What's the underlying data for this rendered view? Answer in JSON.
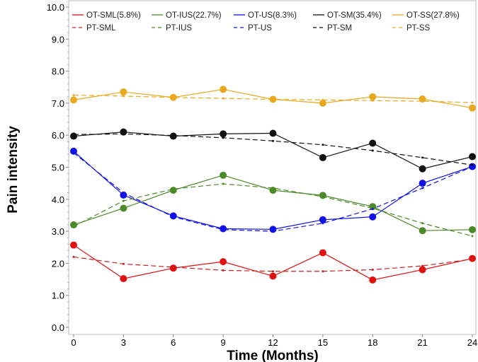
{
  "chart_data": {
    "type": "line",
    "xlabel": "Time (Months)",
    "ylabel": "Pain intensity",
    "x": [
      0,
      3,
      6,
      9,
      12,
      15,
      18,
      21,
      24
    ],
    "xlim": [
      0,
      24
    ],
    "ylim": [
      0,
      10
    ],
    "xticks": [
      "0",
      "3",
      "6",
      "9",
      "12",
      "15",
      "18",
      "21",
      "24"
    ],
    "yticks": [
      "0.0",
      "1.0",
      "2.0",
      "3.0",
      "4.0",
      "5.0",
      "6.0",
      "7.0",
      "8.0",
      "9.0",
      "10.0"
    ],
    "legend_position": "top",
    "series": [
      {
        "name": "OT-SML(5.8%)",
        "color": "#e01010",
        "style": "solid",
        "markers": true,
        "values": [
          2.57,
          1.52,
          1.85,
          2.05,
          1.6,
          2.33,
          1.48,
          1.8,
          2.15
        ]
      },
      {
        "name": "OT-IUS(22.7%)",
        "color": "#4a8a28",
        "style": "solid",
        "markers": true,
        "values": [
          3.2,
          3.72,
          4.28,
          4.75,
          4.28,
          4.12,
          3.77,
          3.02,
          3.05
        ]
      },
      {
        "name": "OT-US(8.3%)",
        "color": "#1010e8",
        "style": "solid",
        "markers": true,
        "values": [
          5.5,
          4.13,
          3.48,
          3.08,
          3.06,
          3.36,
          3.45,
          4.5,
          5.02
        ]
      },
      {
        "name": "OT-SM(35.4%)",
        "color": "#111111",
        "style": "solid",
        "markers": true,
        "values": [
          5.97,
          6.1,
          5.97,
          6.04,
          6.06,
          5.3,
          5.75,
          4.95,
          5.33
        ]
      },
      {
        "name": "OT-SS(27.8%)",
        "color": "#e8a820",
        "style": "solid",
        "markers": true,
        "values": [
          7.1,
          7.35,
          7.18,
          7.43,
          7.12,
          7.0,
          7.2,
          7.13,
          6.85
        ]
      },
      {
        "name": "PT-SML",
        "color": "#c82020",
        "style": "dashed",
        "markers": false,
        "values": [
          2.2,
          1.98,
          1.88,
          1.78,
          1.75,
          1.75,
          1.8,
          1.92,
          2.13
        ]
      },
      {
        "name": "PT-IUS",
        "color": "#4a8a28",
        "style": "dashed",
        "markers": false,
        "values": [
          3.15,
          3.95,
          4.32,
          4.48,
          4.35,
          4.08,
          3.72,
          3.25,
          2.85
        ]
      },
      {
        "name": "PT-US",
        "color": "#1010e8",
        "style": "dashed",
        "markers": false,
        "values": [
          5.45,
          4.2,
          3.45,
          3.05,
          3.0,
          3.25,
          3.7,
          4.35,
          5.02
        ]
      },
      {
        "name": "PT-SM",
        "color": "#111111",
        "style": "dashed",
        "markers": false,
        "values": [
          6.02,
          6.04,
          5.99,
          5.92,
          5.82,
          5.7,
          5.52,
          5.3,
          5.07
        ]
      },
      {
        "name": "PT-SS",
        "color": "#e8a820",
        "style": "dashed",
        "markers": false,
        "values": [
          7.25,
          7.22,
          7.18,
          7.15,
          7.12,
          7.1,
          7.08,
          7.06,
          7.02
        ]
      }
    ]
  }
}
